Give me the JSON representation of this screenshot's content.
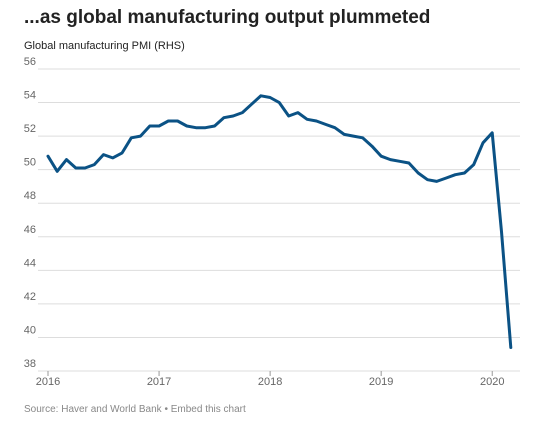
{
  "title": "...as global manufacturing output plummeted",
  "footer": {
    "source": "Source: Haver and World Bank",
    "separator": " • ",
    "embed": "Embed this chart"
  },
  "chart_data": {
    "type": "line",
    "subtitle": "Global manufacturing PMI (RHS)",
    "ylim": [
      38,
      56
    ],
    "yticks": [
      38,
      40,
      42,
      44,
      46,
      48,
      50,
      52,
      54,
      56
    ],
    "xlim": [
      2016,
      2020.25
    ],
    "xticks": [
      2016,
      2017,
      2018,
      2019,
      2020
    ],
    "grid": true,
    "color": "#0b5285",
    "series": [
      {
        "x": [
          2016.0,
          2016.083,
          2016.167,
          2016.25,
          2016.333,
          2016.417,
          2016.5,
          2016.583,
          2016.667,
          2016.75,
          2016.833,
          2016.917,
          2017.0,
          2017.083,
          2017.167,
          2017.25,
          2017.333,
          2017.417,
          2017.5,
          2017.583,
          2017.667,
          2017.75,
          2017.833,
          2017.917,
          2018.0,
          2018.083,
          2018.167,
          2018.25,
          2018.333,
          2018.417,
          2018.5,
          2018.583,
          2018.667,
          2018.75,
          2018.833,
          2018.917,
          2019.0,
          2019.083,
          2019.167,
          2019.25,
          2019.333,
          2019.417,
          2019.5,
          2019.583,
          2019.667,
          2019.75,
          2019.833,
          2019.917,
          2020.0,
          2020.083,
          2020.167
        ],
        "y": [
          50.8,
          49.9,
          50.6,
          50.1,
          50.1,
          50.3,
          50.9,
          50.7,
          51.0,
          51.9,
          52.0,
          52.6,
          52.6,
          52.9,
          52.9,
          52.6,
          52.5,
          52.5,
          52.6,
          53.1,
          53.2,
          53.4,
          53.9,
          54.4,
          54.3,
          54.0,
          53.2,
          53.4,
          53.0,
          52.9,
          52.7,
          52.5,
          52.1,
          52.0,
          51.9,
          51.4,
          50.8,
          50.6,
          50.5,
          50.4,
          49.8,
          49.4,
          49.3,
          49.5,
          49.7,
          49.8,
          50.3,
          51.6,
          52.2,
          46.3,
          39.4
        ]
      }
    ]
  }
}
